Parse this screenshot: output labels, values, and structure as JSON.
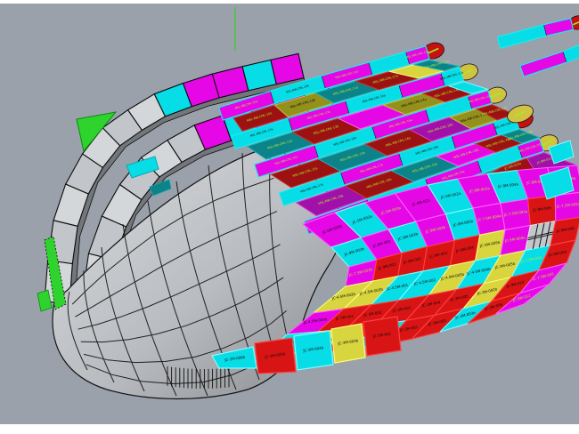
{
  "viewport": {
    "bg": "#9aa1ab",
    "frame": "#ffffff",
    "axis_color": "#2ed32e"
  },
  "palette": {
    "m": "#e607e6",
    "c": "#07dde6",
    "r": "#d91414",
    "y": "#d8d53e",
    "t": "#0c8289",
    "d": "#9c1111",
    "o": "#93901c",
    "p": "#a110a8",
    "g": "#c3c6ca",
    "G": "#2ed32e",
    "label_green": "#b4f02c",
    "cap_red": "#c81010",
    "cap_yellow": "#d2c243",
    "band_light": "#d4d7da",
    "band_mid": "#c2c6ca",
    "hull_light": "#dadcdf",
    "hull_dark": "#87898d"
  },
  "grid": {
    "rows": [
      [
        {
          "c": "m",
          "l": "JC-5M-020b"
        },
        {
          "c": "c",
          "l": "JC-5M-002a"
        },
        {
          "c": "m",
          "l": "JC-5M-003a",
          "t": "g"
        },
        {
          "c": "m",
          "l": "JC-9M-021"
        },
        {
          "c": "c",
          "l": "JC-9M-002a"
        },
        {
          "c": "m",
          "l": "JC-9M-003a",
          "t": "g"
        },
        {
          "c": "c",
          "l": "JC-9M-004a"
        },
        {
          "c": "m",
          "l": "JC-9M-005a",
          "t": "g"
        },
        {
          "c": "m",
          "l": "JC-9M-006a",
          "t": "g"
        }
      ],
      [
        {
          "c": "c",
          "l": "JC-9M-002b"
        },
        {
          "c": "m",
          "l": "JC-9M-001"
        },
        {
          "c": "c",
          "l": "JC-9M-003b"
        },
        {
          "c": "m",
          "l": "JC-9M-004b",
          "t": "g"
        },
        {
          "c": "c",
          "l": "JC-9M-005b"
        },
        {
          "c": "m",
          "l": "JC-7.5M-004a",
          "t": "g"
        },
        {
          "c": "m",
          "l": "JC-7.5M-003a",
          "t": "g"
        },
        {
          "c": "r",
          "l": "JC-9M-006"
        },
        {
          "c": "m",
          "l": "JC-7.5M-002a",
          "t": "g"
        }
      ],
      [
        {
          "c": "m",
          "l": "JC-7.5M-001b",
          "t": "g"
        },
        {
          "c": "r",
          "l": "JC-9M-001"
        },
        {
          "c": "r",
          "l": "JC-9M-002"
        },
        {
          "c": "r",
          "l": "JC-9M-003"
        },
        {
          "c": "r",
          "l": "JC-9M-004"
        },
        {
          "c": "y",
          "l": "JC-5M-005b"
        },
        {
          "c": "m",
          "l": "JC-5M-004a",
          "t": "g"
        },
        {
          "c": "g",
          "l": ""
        },
        {
          "c": "r",
          "l": "JC-9M-008"
        }
      ],
      [
        {
          "c": "y",
          "l": "JC-4.5M-002b"
        },
        {
          "c": "y",
          "l": "JC-4.5M-003b"
        },
        {
          "c": "c",
          "l": "JC-4.5M-001"
        },
        {
          "c": "c",
          "l": "JC-4.5M-002"
        },
        {
          "c": "y",
          "l": "JC-4.5M-005b"
        },
        {
          "c": "c",
          "l": "JC-4.5M-004b"
        },
        {
          "c": "y",
          "l": "JC-3M-005b"
        },
        {
          "c": "c",
          "l": "JC-7.5M-01b",
          "t": "g"
        },
        {
          "c": "r",
          "l": "JC-9M-009"
        }
      ],
      [
        {
          "c": "m",
          "l": "JC-4.5M-003b"
        },
        {
          "c": "r",
          "l": "JC-3M-001"
        },
        {
          "c": "r",
          "l": "JC-3M-002"
        },
        {
          "c": "r",
          "l": "JC-3M-003"
        },
        {
          "c": "r",
          "l": "JC-3M-004"
        },
        {
          "c": "r",
          "l": "JC-3M-005"
        },
        {
          "c": "y",
          "l": "JC-3M-002b"
        },
        {
          "c": "r",
          "l": "JC-9M-010"
        },
        {
          "c": "m",
          "l": "JC-7.5M-005",
          "t": "g"
        }
      ],
      [
        {
          "c": "c",
          "l": "JC-3M-004b"
        },
        {
          "c": "y",
          "l": "JC-3M-002b"
        },
        {
          "c": "r",
          "l": "JC-3M-005b"
        },
        {
          "c": "c",
          "l": "JC-3M-004b"
        },
        {
          "c": "r",
          "l": "JC-3M-001"
        },
        {
          "c": "r",
          "l": "JC-3M-002"
        },
        {
          "c": "c",
          "l": "JC-3M-003b"
        },
        {
          "c": "r",
          "l": "JC-3M-006"
        },
        {
          "c": "m",
          "l": "JC-9M-012",
          "t": "g"
        }
      ]
    ]
  },
  "lanes": [
    [
      {
        "c": "d",
        "l": "MSL-MB-CML-10a",
        "t": "g"
      },
      {
        "c": "o",
        "l": "MSL-MB-CML-10b"
      },
      {
        "c": "t",
        "l": "MSL-MB-CML-11a",
        "t": "g"
      },
      {
        "c": "d",
        "l": "MSL-MB-CML-11b",
        "t": "g"
      },
      {
        "c": "y",
        "l": ""
      },
      {
        "c": "t",
        "l": "MSL-MB-CML-12a",
        "t": "g"
      }
    ],
    [
      {
        "c": "t",
        "l": "MSL-MB-CML-13a",
        "t": "g"
      },
      {
        "c": "d",
        "l": "MSL-MB-CML-13b",
        "t": "g"
      },
      {
        "c": "m",
        "l": ""
      },
      {
        "c": "o",
        "l": "MSL-MB-CML-14a"
      },
      {
        "c": "d",
        "l": "MSL-MB-CML-14b",
        "t": "g"
      },
      {
        "c": "c",
        "l": ""
      }
    ],
    [
      {
        "c": "d",
        "l": "MSL-MB-CML-15a",
        "t": "g"
      },
      {
        "c": "t",
        "l": "MSL-MB-CML-15b",
        "t": "g"
      },
      {
        "c": "d",
        "l": "MSL-MB-CML-16a",
        "t": "g"
      },
      {
        "c": "p",
        "l": "MSL-MB-CML-16b",
        "t": "g"
      },
      {
        "c": "o",
        "l": "MSL-MB-CML-17a"
      },
      {
        "c": "d",
        "l": "MSL-MB-CML-17b",
        "t": "g"
      }
    ],
    [
      {
        "c": "p",
        "l": "MSL-MB-CML-18a",
        "t": "g"
      },
      {
        "c": "d",
        "l": "MSL-MB-CML-18b",
        "t": "g"
      },
      {
        "c": "t",
        "l": "MSL-MB-CML-19a",
        "t": "g"
      },
      {
        "c": "m",
        "l": "MSL-MB-CML-19b",
        "t": "g"
      },
      {
        "c": "d",
        "l": "MSL-MB-CML-20a",
        "t": "g"
      },
      {
        "c": "t",
        "l": "MSL-MB-CML-20b",
        "t": "g"
      }
    ],
    [
      {
        "c": "t",
        "l": "JC-7.5M-001a",
        "t": "g"
      },
      {
        "c": "d",
        "l": "JC-9M-007a",
        "t": "g"
      },
      {
        "c": "m",
        "l": "JC-9M-008a",
        "t": "g"
      },
      {
        "c": "t",
        "l": "JC-9M-009a",
        "t": "g"
      },
      {
        "c": "d",
        "l": "JC-9M-010a",
        "t": "g"
      },
      {
        "c": "p",
        "l": "JC-9M-011a",
        "t": "g"
      }
    ]
  ],
  "strips": [
    {
      "cap": "cap_red",
      "segs": [
        {
          "c": "m",
          "l": "MSL-MB-CML-10a",
          "t": "g"
        },
        {
          "c": "c",
          "l": "MSL-MB-CML-10b"
        },
        {
          "c": "m",
          "l": "MSL-MB-CML-11a",
          "t": "g"
        },
        {
          "c": "c",
          "l": ""
        },
        {
          "c": "m",
          "l": "MSL-MB-CML-12a",
          "t": "g"
        }
      ]
    },
    {
      "cap": "cap_yellow",
      "segs": [
        {
          "c": "c",
          "l": "MSL-MB-CML-13a"
        },
        {
          "c": "m",
          "l": "MSL-MB-CML-13b",
          "t": "g"
        },
        {
          "c": "c",
          "l": "MSL-MB-CML-14a"
        },
        {
          "c": "m",
          "l": "",
          "t": "g"
        },
        {
          "c": "c",
          "l": "MSL-MB-CML-14b"
        }
      ]
    },
    {
      "cap": "cap_yellow",
      "segs": [
        {
          "c": "m",
          "l": "MSL-MB-CML-15a",
          "t": "g"
        },
        {
          "c": "c",
          "l": "MSL-MB-CML-15b"
        },
        {
          "c": "m",
          "l": "MSL-MB-CML-16a",
          "t": "g"
        },
        {
          "c": "c",
          "l": ""
        },
        {
          "c": "m",
          "l": "MSL-MB-CML-16b",
          "t": "g"
        }
      ]
    },
    {
      "cap": "cap_red",
      "segs": [
        {
          "c": "c",
          "l": "MSL-MB-CML-17a"
        },
        {
          "c": "m",
          "l": "MSL-MB-CML-17b",
          "t": "g"
        },
        {
          "c": "c",
          "l": "MSL-MB-CML-18a"
        },
        {
          "c": "m",
          "l": "",
          "t": "g"
        },
        {
          "c": "c",
          "l": "MSL-MB-CML-18b"
        }
      ]
    },
    {
      "cap": "cap_yellow",
      "segs": [
        {
          "c": "m",
          "l": "MSL-MB-CML-19a",
          "t": "g"
        },
        {
          "c": "c",
          "l": "MSL-MB-CML-19b"
        },
        {
          "c": "m",
          "l": "MSL-MB-CML-20a",
          "t": "g"
        },
        {
          "c": "c",
          "l": ""
        },
        {
          "c": "m",
          "l": "MSL-MB-CML-20b",
          "t": "g"
        }
      ]
    }
  ],
  "tips": [
    {
      "cap": "cap_red",
      "segs": [
        {
          "c": "c",
          "l": ""
        },
        {
          "c": "m",
          "l": ""
        }
      ]
    },
    {
      "cap": "cap_yellow",
      "segs": [
        {
          "c": "m",
          "l": ""
        },
        {
          "c": "c",
          "l": ""
        }
      ]
    }
  ],
  "bands": {
    "a": [
      "g1",
      "g2",
      "g1",
      "g2",
      "g1",
      "g2",
      "g1",
      "c",
      "m",
      "m",
      "c",
      "m"
    ],
    "b": [
      "g2",
      "g1",
      "g2",
      "g1",
      "g2",
      "g1",
      "g2",
      "m",
      "c",
      "m",
      "m",
      "c"
    ]
  },
  "bottom_row": [
    {
      "c": "c",
      "l": "JC-3M-006b"
    },
    {
      "c": "r",
      "l": "JC-3M-005b"
    },
    {
      "c": "c",
      "l": "JC-3M-004b"
    },
    {
      "c": "y",
      "l": "JC-3M-003b"
    },
    {
      "c": "r",
      "l": "JC-3M-002"
    }
  ],
  "accents": [
    {
      "name": "green-corner-panel",
      "c": "G"
    },
    {
      "name": "green-edge-wedge",
      "c": "G"
    },
    {
      "name": "cyan-edge-sliver",
      "c": "c"
    },
    {
      "name": "teal-edge-sliver",
      "c": "t"
    }
  ]
}
